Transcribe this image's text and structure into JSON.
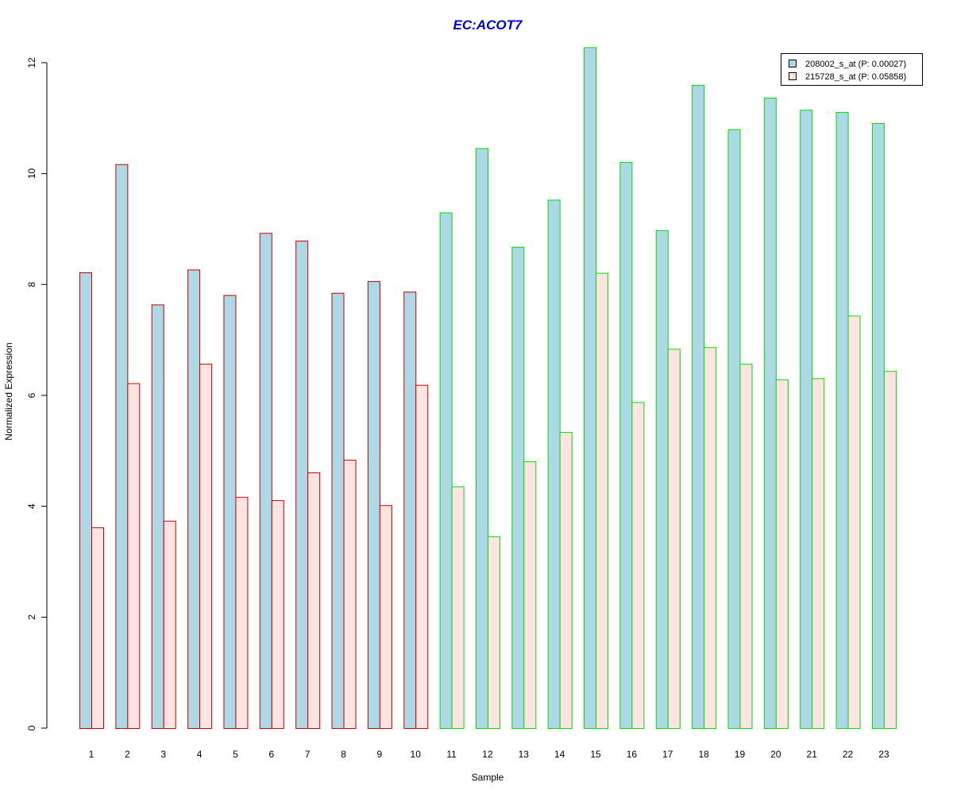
{
  "chart_data": {
    "type": "bar",
    "title": "EC:ACOT7",
    "xlabel": "Sample",
    "ylabel": "Normalized Expression",
    "ylim": [
      0,
      12.3
    ],
    "yticks": [
      0,
      2,
      4,
      6,
      8,
      10,
      12
    ],
    "categories": [
      "1",
      "2",
      "3",
      "4",
      "5",
      "6",
      "7",
      "8",
      "9",
      "10",
      "11",
      "12",
      "13",
      "14",
      "15",
      "16",
      "17",
      "18",
      "19",
      "20",
      "21",
      "22",
      "23"
    ],
    "group_border_colors": [
      "#CC0000",
      "#CC0000",
      "#CC0000",
      "#CC0000",
      "#CC0000",
      "#CC0000",
      "#CC0000",
      "#CC0000",
      "#CC0000",
      "#CC0000",
      "#00DD00",
      "#00DD00",
      "#00DD00",
      "#00DD00",
      "#00DD00",
      "#00DD00",
      "#00DD00",
      "#00DD00",
      "#00DD00",
      "#00DD00",
      "#00DD00",
      "#00DD00",
      "#00DD00"
    ],
    "series": [
      {
        "name": "208002_s_at (P: 0.00027)",
        "fill": "#ADD8E6",
        "values": [
          8.22,
          10.17,
          7.64,
          8.27,
          7.81,
          8.93,
          8.79,
          7.85,
          8.06,
          7.87,
          9.3,
          10.46,
          8.68,
          9.53,
          12.28,
          10.21,
          8.98,
          11.6,
          10.8,
          11.37,
          11.15,
          11.11,
          10.91
        ]
      },
      {
        "name": "215728_s_at (P: 0.05858)",
        "fill": "#FFE4E1",
        "values": [
          3.62,
          6.22,
          3.74,
          6.57,
          4.17,
          4.11,
          4.61,
          4.84,
          4.02,
          6.19,
          4.36,
          3.46,
          4.81,
          5.34,
          8.21,
          5.88,
          6.84,
          6.87,
          6.57,
          6.29,
          6.31,
          7.44,
          6.44
        ]
      }
    ],
    "legend_position": "top-right",
    "grid": false
  }
}
